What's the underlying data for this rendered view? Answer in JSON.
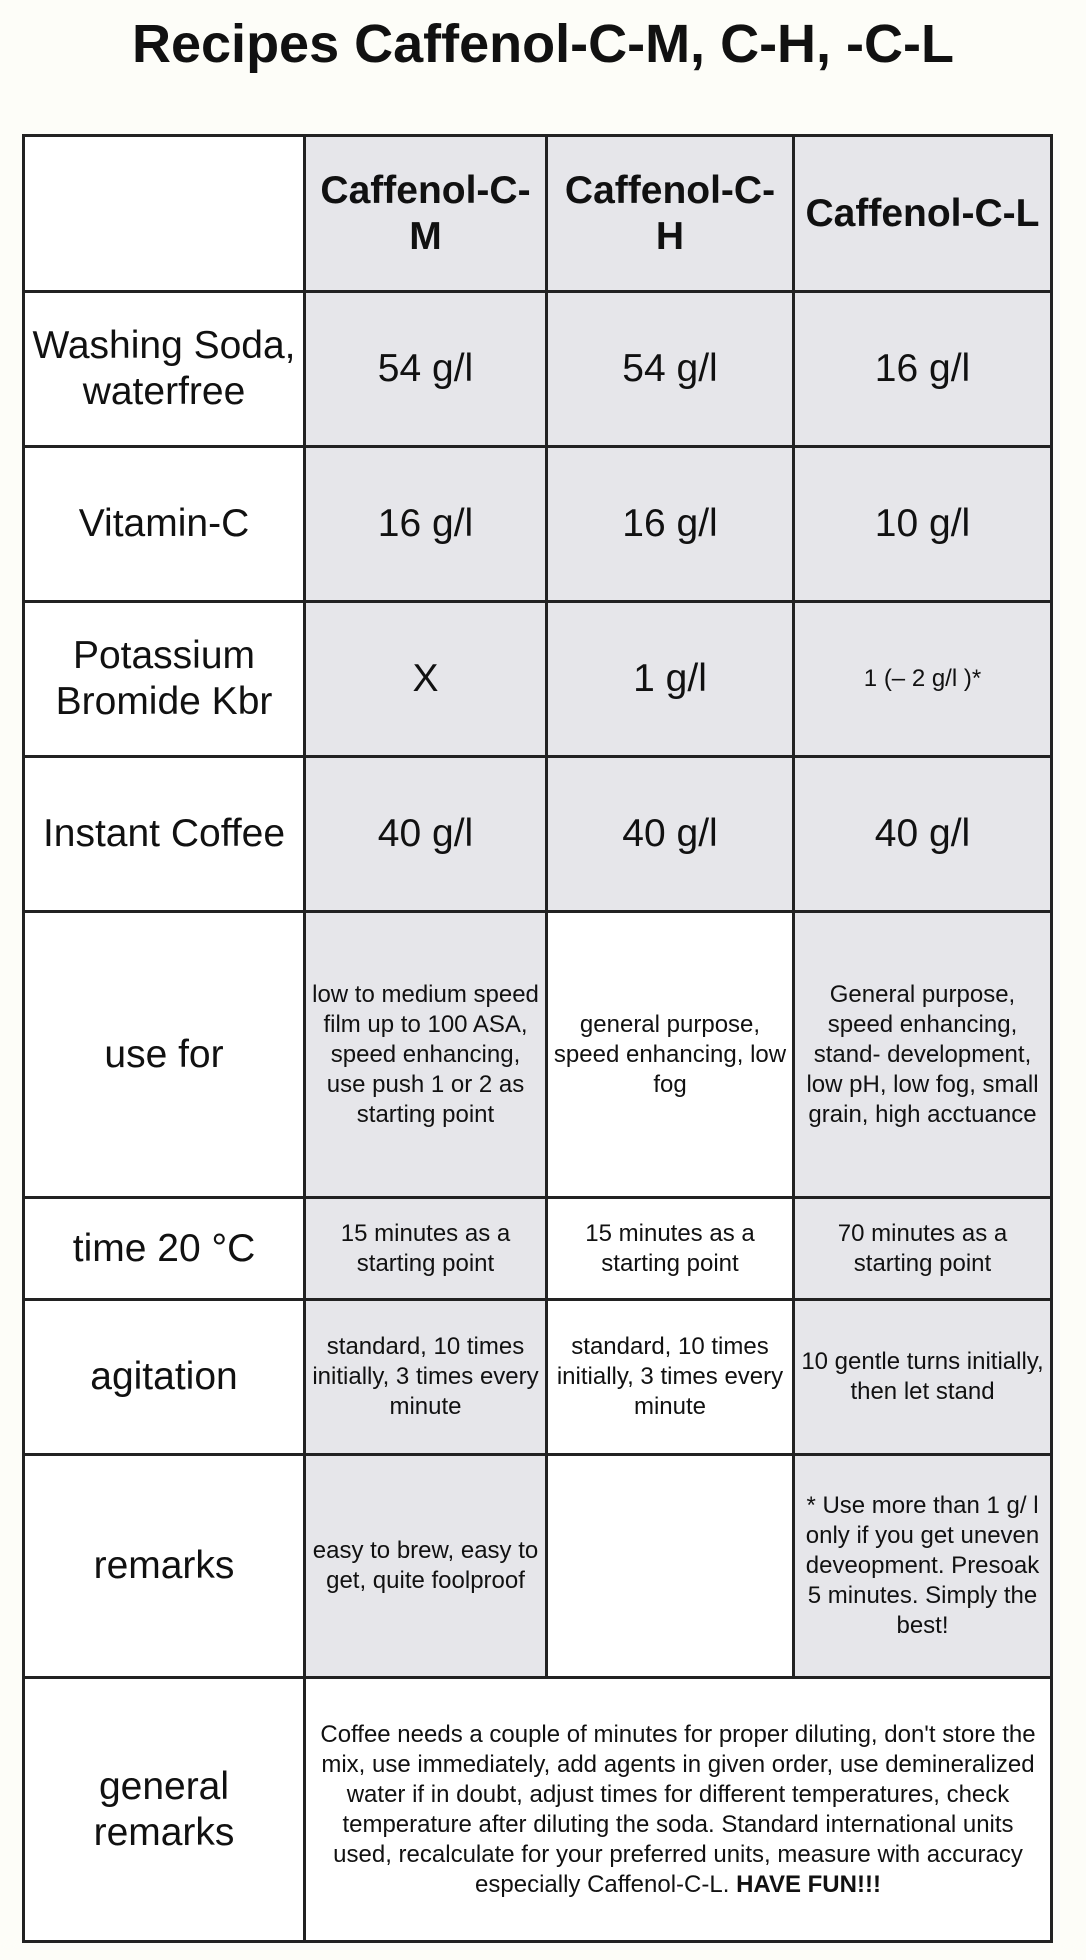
{
  "title": "Recipes Caffenol-C-M, C-H, -C-L",
  "table": {
    "header": [
      "Caffenol-C-M",
      "Caffenol-C-H",
      "Caffenol-C-L"
    ],
    "rows": [
      {
        "label": "Washing Soda, waterfree",
        "cells": [
          "54 g/l",
          "54 g/l",
          "16 g/l"
        ]
      },
      {
        "label": "Vitamin-C",
        "cells": [
          "16 g/l",
          "16 g/l",
          "10 g/l"
        ]
      },
      {
        "label": "Potassium Bromide Kbr",
        "cells": [
          "X",
          "1 g/l",
          "1 (– 2 g/l )*"
        ]
      },
      {
        "label": "Instant Coffee",
        "cells": [
          "40 g/l",
          "40 g/l",
          "40 g/l"
        ]
      },
      {
        "label": "use for",
        "cells": [
          "low to medium speed film up to 100 ASA, speed enhancing, use push 1 or 2 as starting point",
          "general purpose, speed enhancing, low fog",
          "General purpose, speed enhancing, stand- development, low pH, low fog, small grain, high acctuance"
        ]
      },
      {
        "label": "time 20 °C",
        "cells": [
          "15 minutes as a starting point",
          "15 minutes as a starting point",
          "70  minutes as a starting point"
        ]
      },
      {
        "label": "agitation",
        "cells": [
          "standard, 10 times initially, 3 times every minute",
          "standard, 10 times initially, 3 times every minute",
          "10 gentle turns initially, then let stand"
        ]
      },
      {
        "label": "remarks",
        "cells": [
          "easy to brew, easy to get, quite foolproof",
          null,
          "* Use more than 1 g/ l only if you get uneven deveopment. Presoak 5 minutes. Simply the best!"
        ]
      }
    ],
    "general": {
      "label": "general remarks",
      "text": "Coffee needs a couple of minutes for proper diluting, don't store the mix, use immediately, add agents in given order, use demineralized water if in doubt, adjust times for different temperatures, check temperature after diluting the soda. Standard international units used, recalculate for your preferred units, measure with accuracy especially Caffenol-C-L.",
      "emphasis": "HAVE FUN!!!"
    }
  }
}
